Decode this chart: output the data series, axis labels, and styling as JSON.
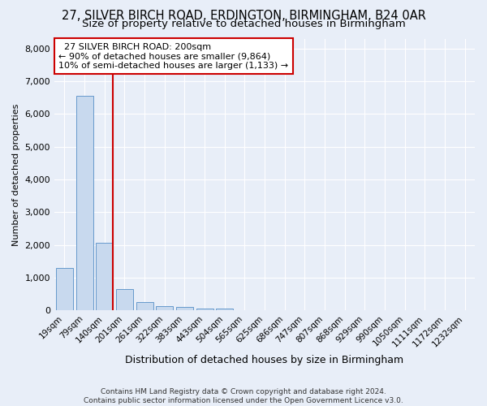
{
  "title1": "27, SILVER BIRCH ROAD, ERDINGTON, BIRMINGHAM, B24 0AR",
  "title2": "Size of property relative to detached houses in Birmingham",
  "xlabel": "Distribution of detached houses by size in Birmingham",
  "ylabel": "Number of detached properties",
  "footnote1": "Contains HM Land Registry data © Crown copyright and database right 2024.",
  "footnote2": "Contains public sector information licensed under the Open Government Licence v3.0.",
  "bar_labels": [
    "19sqm",
    "79sqm",
    "140sqm",
    "201sqm",
    "261sqm",
    "322sqm",
    "383sqm",
    "443sqm",
    "504sqm",
    "565sqm",
    "625sqm",
    "686sqm",
    "747sqm",
    "807sqm",
    "868sqm",
    "929sqm",
    "990sqm",
    "1050sqm",
    "1111sqm",
    "1172sqm",
    "1232sqm"
  ],
  "bar_values": [
    1300,
    6550,
    2075,
    650,
    250,
    130,
    95,
    65,
    65,
    0,
    0,
    0,
    0,
    0,
    0,
    0,
    0,
    0,
    0,
    0,
    0
  ],
  "bar_color": "#c8d9ee",
  "bar_edge_color": "#6699cc",
  "property_line_color": "#cc0000",
  "annotation_text": "  27 SILVER BIRCH ROAD: 200sqm\n← 90% of detached houses are smaller (9,864)\n10% of semi-detached houses are larger (1,133) →",
  "annotation_box_color": "#cc0000",
  "ylim": [
    0,
    8300
  ],
  "yticks": [
    0,
    1000,
    2000,
    3000,
    4000,
    5000,
    6000,
    7000,
    8000
  ],
  "background_color": "#e8eef8",
  "grid_color": "#ffffff",
  "title1_fontsize": 10.5,
  "title2_fontsize": 9.5,
  "xlabel_fontsize": 9,
  "ylabel_fontsize": 8,
  "footnote_fontsize": 6.5
}
